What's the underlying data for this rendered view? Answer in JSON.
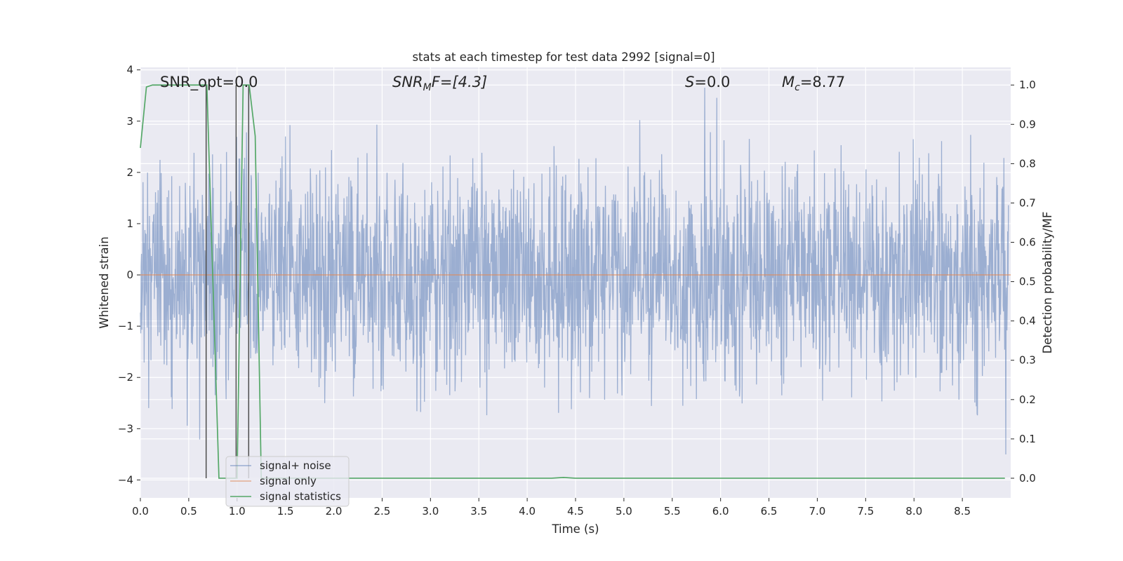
{
  "chart_data": {
    "type": "line",
    "title": "stats at each timestep for test data 2992 [signal=0]",
    "xlabel": "Time (s)",
    "ylabel": "Whitened strain",
    "y2label": "Detection probability/MF",
    "xlim": [
      0.0,
      9.0
    ],
    "ylim": [
      -4.35,
      4.05
    ],
    "y2lim": [
      -0.05,
      1.045
    ],
    "xticks": [
      0.0,
      0.5,
      1.0,
      1.5,
      2.0,
      2.5,
      3.0,
      3.5,
      4.0,
      4.5,
      5.0,
      5.5,
      6.0,
      6.5,
      7.0,
      7.5,
      8.0,
      8.5
    ],
    "xtick_labels": [
      "0.0",
      "0.5",
      "1.0",
      "1.5",
      "2.0",
      "2.5",
      "3.0",
      "3.5",
      "4.0",
      "4.5",
      "5.0",
      "5.5",
      "6.0",
      "6.5",
      "7.0",
      "7.5",
      "8.0",
      "8.5"
    ],
    "yticks": [
      -4,
      -3,
      -2,
      -1,
      0,
      1,
      2,
      3,
      4
    ],
    "ytick_labels": [
      "−4",
      "−3",
      "−2",
      "−1",
      "0",
      "1",
      "2",
      "3",
      "4"
    ],
    "y2ticks": [
      0.0,
      0.1,
      0.2,
      0.3,
      0.4,
      0.5,
      0.6,
      0.7,
      0.8,
      0.9,
      1.0
    ],
    "y2tick_labels": [
      "0.0",
      "0.1",
      "0.2",
      "0.3",
      "0.4",
      "0.5",
      "0.6",
      "0.7",
      "0.8",
      "0.9",
      "1.0"
    ],
    "grid": true,
    "legend_position": "lower-left",
    "annotations": {
      "snr_opt": "SNR_opt=0.0",
      "snr_mf_main": "SNR",
      "snr_mf_sub": "M",
      "snr_mf_rest": "F=[4.3]",
      "s_main": "S",
      "s_rest": "=0.0",
      "mc_main": "M",
      "mc_sub": "c",
      "mc_rest": "=8.77"
    },
    "series": [
      {
        "name": "signal+ noise",
        "color": "#4c72b0",
        "description_axis": "left",
        "sample_rate_hz": 256,
        "approx_std": 1.05,
        "approx_range": [
          -4.0,
          3.7
        ]
      },
      {
        "name": "signal only",
        "color": "#dd8452",
        "axis": "left",
        "x": [
          0.0,
          9.0
        ],
        "y": [
          0.0,
          0.0
        ]
      },
      {
        "name": "signal statistics",
        "color": "#55a868",
        "axis": "right",
        "x": [
          0.0,
          0.0625,
          0.125,
          0.625,
          0.6875,
          0.75,
          0.8125,
          1.0,
          1.0625,
          1.125,
          1.1875,
          1.25,
          4.25,
          4.375,
          4.5,
          8.94
        ],
        "y": [
          0.84,
          0.995,
          1.0,
          1.0,
          1.0,
          0.5,
          0.0,
          0.0,
          1.0,
          1.0,
          0.87,
          0.0,
          0.0,
          0.002,
          0.0,
          0.0
        ]
      }
    ],
    "vertical_markers": {
      "color": "#4d4d4d",
      "x": [
        0.68,
        0.99,
        1.12
      ],
      "y_from": 0.0,
      "y_to": 1.0,
      "axis": "right"
    }
  }
}
